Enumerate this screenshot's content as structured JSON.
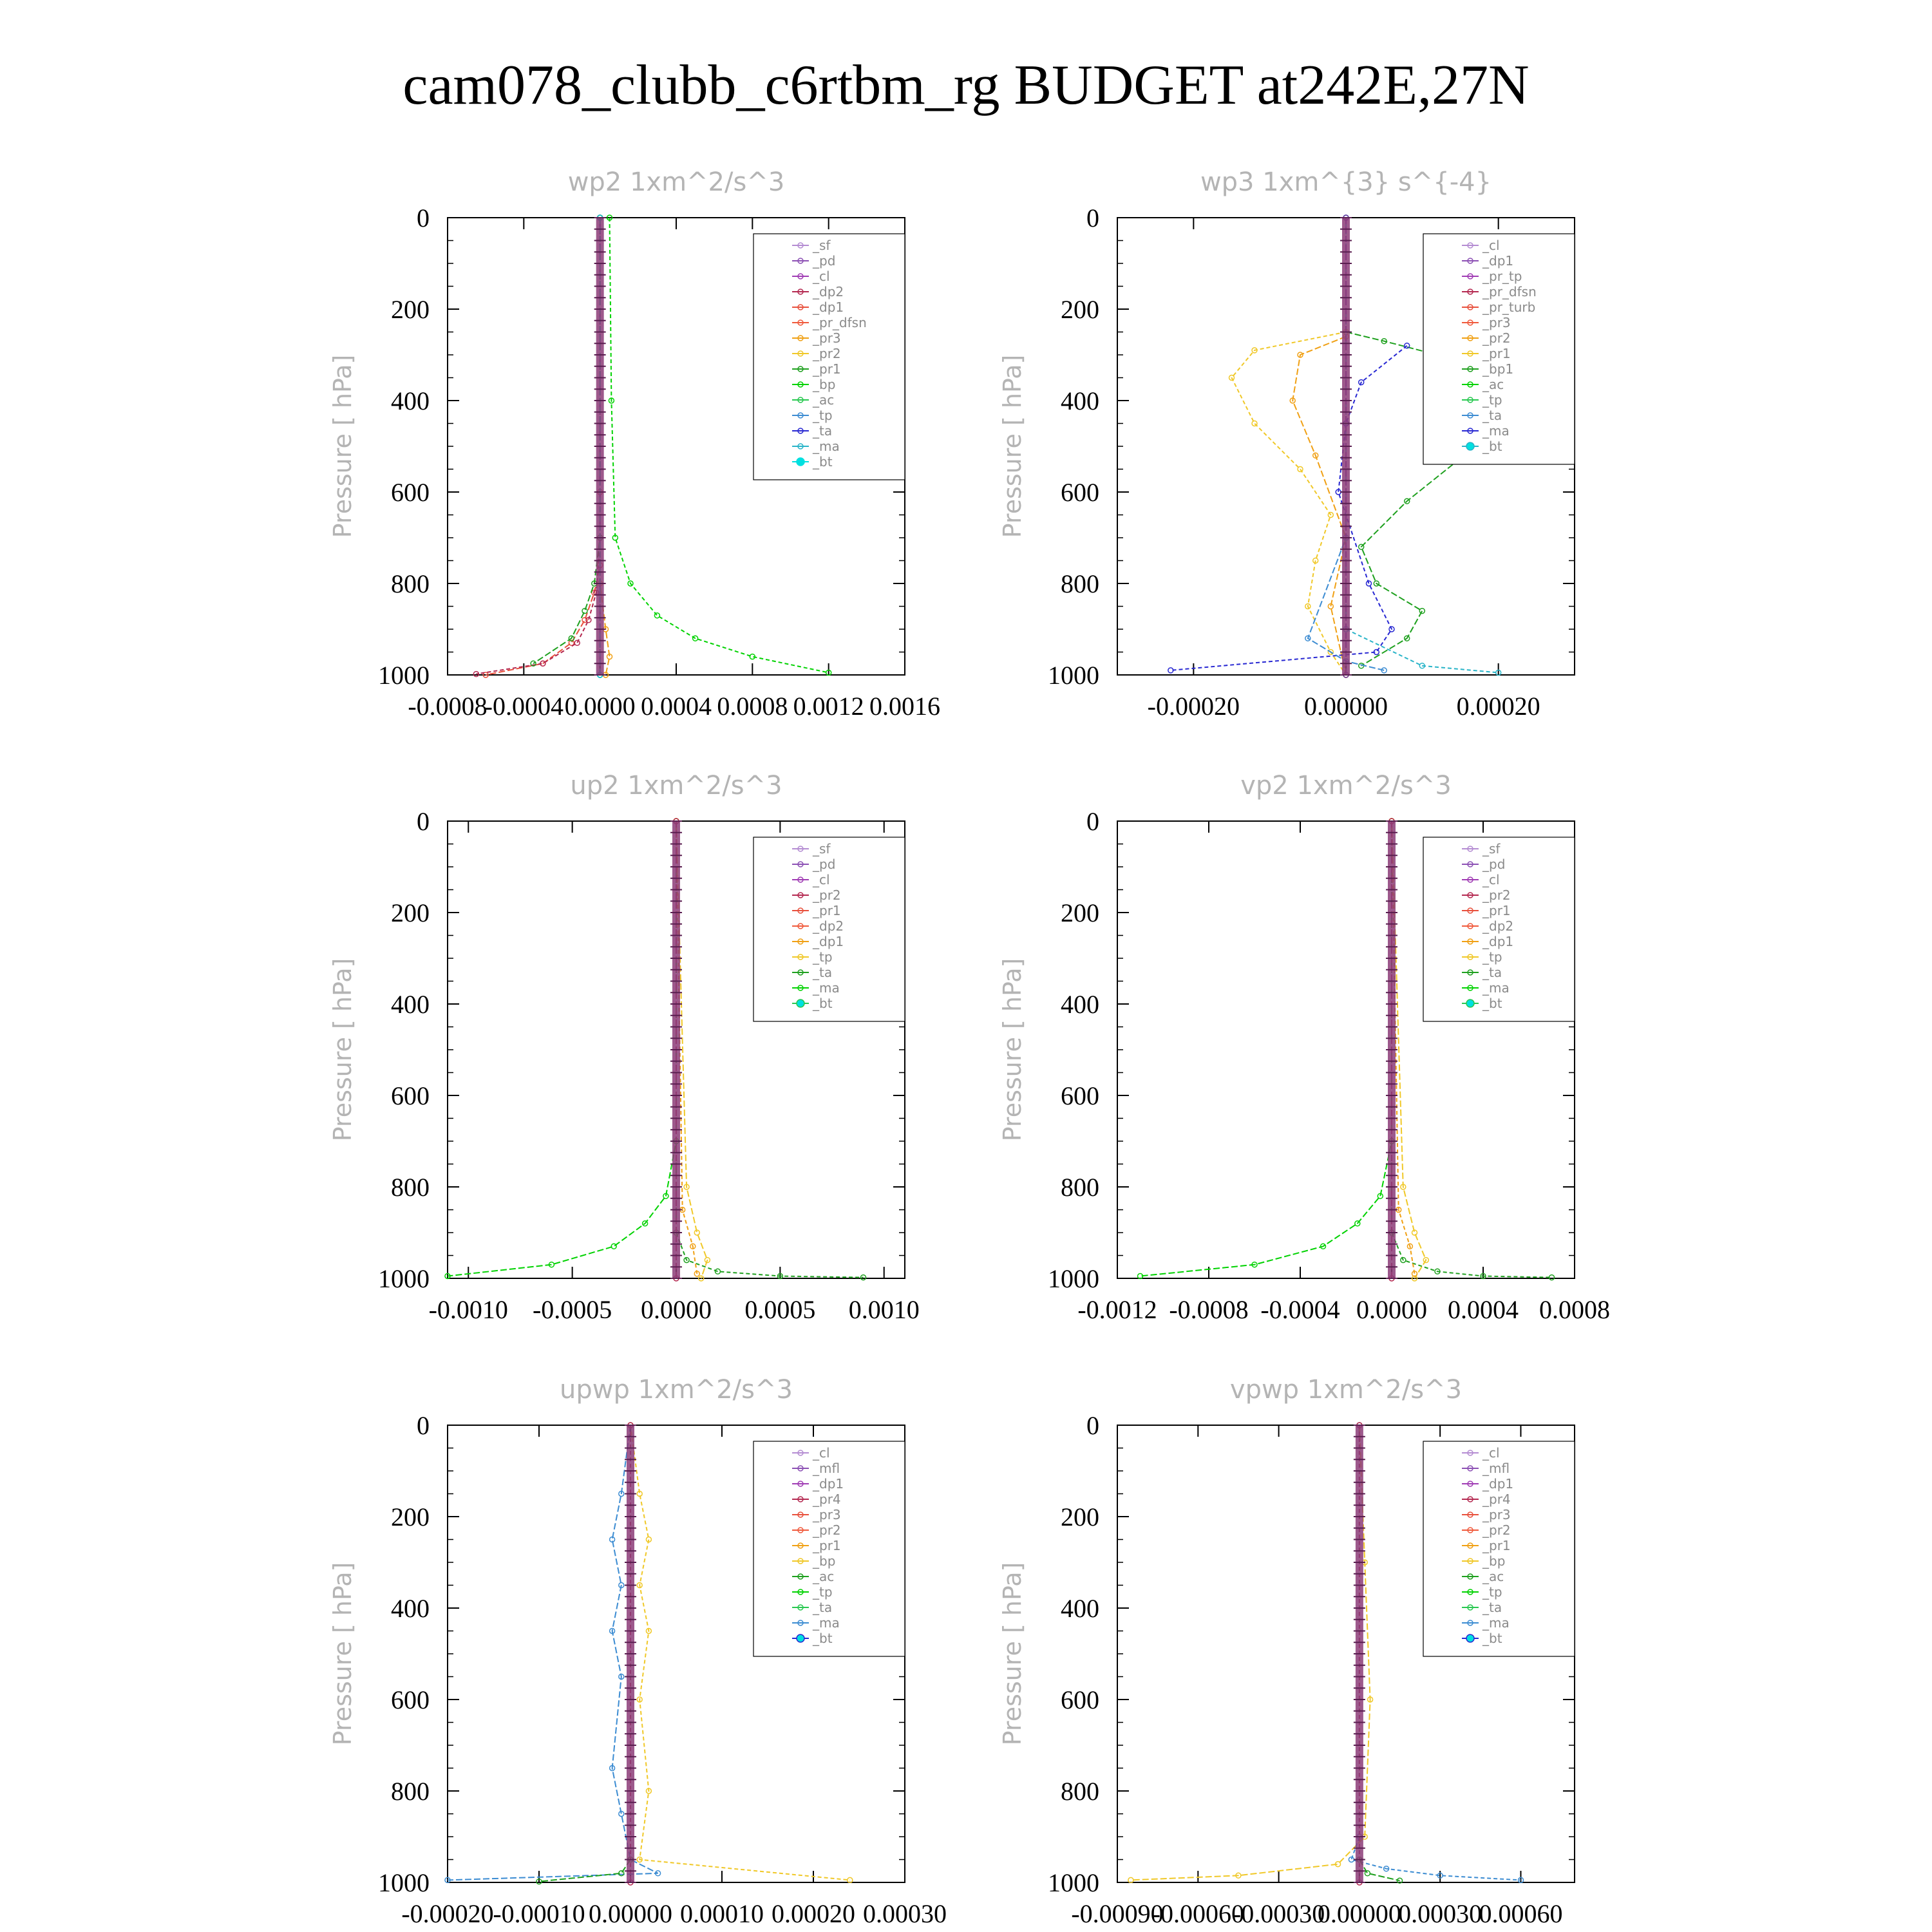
{
  "title": "cam078_clubb_c6rtbm_rg  BUDGET at242E,27N",
  "chart_data": [
    {
      "id": "wp2",
      "type": "line",
      "title": "wp2   1xm^2/s^3",
      "ylabel": "Pressure  [ hPa]",
      "ylim": [
        1000,
        0
      ],
      "xlim": [
        -0.0008,
        0.0016
      ],
      "yticks": [
        "0",
        "200",
        "400",
        "600",
        "800",
        "1000"
      ],
      "xticks": [
        "-0.0008",
        "-0.0004",
        "0.0000",
        "0.0004",
        "0.0008",
        "0.0012",
        "0.0016"
      ],
      "legend": [
        "_sf",
        "_pd",
        "_cl",
        "_dp2",
        "_dp1",
        "_pr_dfsn",
        "_pr3",
        "_pr2",
        "_pr1",
        "_bp",
        "_ac",
        "_tp",
        "_ta",
        "_ma",
        "_bt"
      ],
      "series": [
        {
          "name": "_dp1",
          "color": "#e8503c",
          "x": [
            0,
            0,
            0,
            -3e-05,
            -8e-05,
            -0.00015,
            -0.0003,
            -0.0006
          ],
          "y": [
            0,
            600,
            760,
            820,
            880,
            930,
            975,
            1000
          ]
        },
        {
          "name": "_dp2",
          "color": "#b42850",
          "x": [
            0,
            0,
            -2e-05,
            -6e-05,
            -0.00012,
            -0.0003,
            -0.00065
          ],
          "y": [
            0,
            700,
            820,
            880,
            930,
            975,
            998
          ]
        },
        {
          "name": "_pr1",
          "color": "#1ea01e",
          "x": [
            0,
            0,
            -3e-05,
            -8e-05,
            -0.00015,
            -0.00035
          ],
          "y": [
            0,
            700,
            800,
            860,
            920,
            975
          ]
        },
        {
          "name": "_bp",
          "color": "#00d200",
          "x": [
            5e-05,
            6e-05,
            8e-05,
            0.00016,
            0.0003,
            0.0005,
            0.0008,
            0.0012
          ],
          "y": [
            0,
            400,
            700,
            800,
            870,
            920,
            960,
            995
          ]
        },
        {
          "name": "_pr3",
          "color": "#f0a014",
          "x": [
            0,
            0,
            3e-05,
            5e-05,
            3e-05
          ],
          "y": [
            0,
            800,
            900,
            960,
            1000
          ]
        },
        {
          "name": "_pd",
          "color": "#6a329f",
          "x": [
            0,
            0
          ],
          "y": [
            0,
            1000
          ]
        },
        {
          "name": "_bt",
          "color": "#00c8c8",
          "x": [
            0,
            0
          ],
          "y": [
            0,
            1000
          ]
        }
      ]
    },
    {
      "id": "wp3",
      "type": "line",
      "title": "wp3   1xm^{3} s^{-4}",
      "ylabel": "Pressure  [ hPa]",
      "ylim": [
        1000,
        0
      ],
      "xlim": [
        -0.0003,
        0.0003
      ],
      "yticks": [
        "0",
        "200",
        "400",
        "600",
        "800",
        "1000"
      ],
      "xticks": [
        "-0.00020",
        "0.00000",
        "0.00020"
      ],
      "legend": [
        "_cl",
        "_dp1",
        "_pr_tp",
        "_pr_dfsn",
        "_pr_turb",
        "_pr3",
        "_pr2",
        "_pr1",
        "_bp1",
        "_ac",
        "_tp",
        "_ta",
        "_ma",
        "_bt"
      ],
      "series": [
        {
          "name": "_ac",
          "color": "#1ea01e",
          "x": [
            0,
            5e-05,
            0.00012,
            0.00018,
            0.00017,
            8e-05,
            2e-05,
            4e-05,
            0.0001,
            8e-05,
            2e-05
          ],
          "y": [
            250,
            270,
            300,
            400,
            500,
            620,
            720,
            800,
            860,
            920,
            980
          ]
        },
        {
          "name": "_pr1",
          "color": "#f0c828",
          "x": [
            0,
            -0.00012,
            -0.00015,
            -0.00012,
            -6e-05,
            -2e-05,
            -4e-05,
            -5e-05,
            -2e-05,
            0
          ],
          "y": [
            250,
            290,
            350,
            450,
            550,
            650,
            750,
            850,
            950,
            1000
          ]
        },
        {
          "name": "_pr2",
          "color": "#f0a014",
          "x": [
            0,
            -6e-05,
            -7e-05,
            -4e-05,
            0,
            -2e-05,
            0
          ],
          "y": [
            260,
            300,
            400,
            520,
            700,
            850,
            1000
          ]
        },
        {
          "name": "_ta",
          "color": "#2828d2",
          "x": [
            8e-05,
            2e-05,
            0,
            -1e-05,
            3e-05,
            6e-05,
            4e-05,
            -0.00023
          ],
          "y": [
            280,
            360,
            450,
            600,
            800,
            900,
            950,
            990
          ]
        },
        {
          "name": "_tp",
          "color": "#3c8cd2",
          "x": [
            0,
            0,
            -5e-05,
            0,
            5e-05
          ],
          "y": [
            0,
            700,
            920,
            970,
            990
          ]
        },
        {
          "name": "_ma",
          "color": "#28b4c8",
          "x": [
            0,
            0,
            0.0001,
            0.0002
          ],
          "y": [
            0,
            900,
            980,
            995
          ]
        },
        {
          "name": "_cl",
          "color": "#6a329f",
          "x": [
            0,
            0
          ],
          "y": [
            0,
            1000
          ]
        }
      ]
    },
    {
      "id": "up2",
      "type": "line",
      "title": "up2   1xm^2/s^3",
      "ylabel": "Pressure  [ hPa]",
      "ylim": [
        1000,
        0
      ],
      "xlim": [
        -0.0011,
        0.0011
      ],
      "yticks": [
        "0",
        "200",
        "400",
        "600",
        "800",
        "1000"
      ],
      "xticks": [
        "-0.0010",
        "-0.0005",
        "0.0000",
        "0.0005",
        "0.0010"
      ],
      "legend": [
        "_sf",
        "_pd",
        "_cl",
        "_pr2",
        "_pr1",
        "_dp2",
        "_dp1",
        "_tp",
        "_ta",
        "_ma",
        "_bt"
      ],
      "series": [
        {
          "name": "_dp1",
          "color": "#00d200",
          "x": [
            0,
            0,
            -5e-05,
            -0.00015,
            -0.0003,
            -0.0006,
            -0.0011
          ],
          "y": [
            0,
            700,
            820,
            880,
            930,
            970,
            995
          ]
        },
        {
          "name": "_dp2",
          "color": "#1ea01e",
          "x": [
            0,
            0,
            5e-05,
            0.0002,
            0.0005,
            0.0009
          ],
          "y": [
            0,
            900,
            960,
            985,
            995,
            998
          ]
        },
        {
          "name": "_pr1",
          "color": "#f0c828",
          "x": [
            0,
            5e-05,
            0.0001,
            0.00015,
            0.00012
          ],
          "y": [
            0,
            800,
            900,
            960,
            1000
          ]
        },
        {
          "name": "_pr2",
          "color": "#f0a014",
          "x": [
            0,
            3e-05,
            8e-05,
            0.0001
          ],
          "y": [
            0,
            850,
            930,
            990
          ]
        },
        {
          "name": "_sf",
          "color": "#b42850",
          "x": [
            0,
            0
          ],
          "y": [
            0,
            1000
          ]
        }
      ]
    },
    {
      "id": "vp2",
      "type": "line",
      "title": "vp2   1xm^2/s^3",
      "ylabel": "Pressure  [ hPa]",
      "ylim": [
        1000,
        0
      ],
      "xlim": [
        -0.0012,
        0.0008
      ],
      "yticks": [
        "0",
        "200",
        "400",
        "600",
        "800",
        "1000"
      ],
      "xticks": [
        "-0.0012",
        "-0.0008",
        "-0.0004",
        "0.0000",
        "0.0004",
        "0.0008"
      ],
      "legend": [
        "_sf",
        "_pd",
        "_cl",
        "_pr2",
        "_pr1",
        "_dp2",
        "_dp1",
        "_tp",
        "_ta",
        "_ma",
        "_bt"
      ],
      "series": [
        {
          "name": "_dp1",
          "color": "#00d200",
          "x": [
            0,
            0,
            -5e-05,
            -0.00015,
            -0.0003,
            -0.0006,
            -0.0011
          ],
          "y": [
            0,
            700,
            820,
            880,
            930,
            970,
            995
          ]
        },
        {
          "name": "_dp2",
          "color": "#1ea01e",
          "x": [
            0,
            0,
            5e-05,
            0.0002,
            0.0004,
            0.0007
          ],
          "y": [
            0,
            900,
            960,
            985,
            995,
            998
          ]
        },
        {
          "name": "_pr1",
          "color": "#f0c828",
          "x": [
            0,
            5e-05,
            0.0001,
            0.00015,
            0.0001
          ],
          "y": [
            0,
            800,
            900,
            960,
            1000
          ]
        },
        {
          "name": "_pr2",
          "color": "#f0a014",
          "x": [
            0,
            3e-05,
            8e-05,
            0.0001
          ],
          "y": [
            0,
            850,
            930,
            990
          ]
        },
        {
          "name": "_sf",
          "color": "#b42850",
          "x": [
            0,
            0
          ],
          "y": [
            0,
            1000
          ]
        }
      ]
    },
    {
      "id": "upwp",
      "type": "line",
      "title": "upwp   1xm^2/s^3",
      "ylabel": "Pressure  [ hPa]",
      "ylim": [
        1000,
        0
      ],
      "xlim": [
        -0.0002,
        0.0003
      ],
      "yticks": [
        "0",
        "200",
        "400",
        "600",
        "800",
        "1000"
      ],
      "xticks": [
        "-0.00020",
        "-0.00010",
        "0.00000",
        "0.00010",
        "0.00020",
        "0.00030"
      ],
      "legend": [
        "_cl",
        "_mfl",
        "_dp1",
        "_pr4",
        "_pr3",
        "_pr2",
        "_pr1",
        "_bp",
        "_ac",
        "_tp",
        "_ta",
        "_ma",
        "_bt"
      ],
      "series": [
        {
          "name": "_tp",
          "color": "#3c8cd2",
          "x": [
            0,
            -1e-05,
            -2e-05,
            -1e-05,
            -2e-05,
            -1e-05,
            -2e-05,
            -1e-05,
            0,
            3e-05,
            -0.0002
          ],
          "y": [
            0,
            150,
            250,
            350,
            450,
            550,
            750,
            850,
            950,
            980,
            995
          ]
        },
        {
          "name": "_pr1",
          "color": "#f0c828",
          "x": [
            0,
            1e-05,
            2e-05,
            1e-05,
            2e-05,
            1e-05,
            2e-05,
            1e-05,
            0.00024
          ],
          "y": [
            0,
            150,
            250,
            350,
            450,
            600,
            800,
            950,
            995
          ]
        },
        {
          "name": "_bp",
          "color": "#1ea01e",
          "x": [
            0,
            -1e-05,
            -0.0001
          ],
          "y": [
            950,
            980,
            998
          ]
        },
        {
          "name": "_dp1",
          "color": "#b42850",
          "x": [
            0,
            0
          ],
          "y": [
            0,
            1000
          ]
        }
      ]
    },
    {
      "id": "vpwp",
      "type": "line",
      "title": "vpwp   1xm^2/s^3",
      "ylabel": "Pressure  [ hPa]",
      "ylim": [
        1000,
        0
      ],
      "xlim": [
        -0.0009,
        0.0008
      ],
      "yticks": [
        "0",
        "200",
        "400",
        "600",
        "800",
        "1000"
      ],
      "xticks": [
        "-0.00090",
        "-0.00060",
        "-0.00030",
        "0.00000",
        "0.00030",
        "0.00060"
      ],
      "legend": [
        "_cl",
        "_mfl",
        "_dp1",
        "_pr4",
        "_pr3",
        "_pr2",
        "_pr1",
        "_bp",
        "_ac",
        "_tp",
        "_ta",
        "_ma",
        "_bt"
      ],
      "series": [
        {
          "name": "_pr1",
          "color": "#f0c828",
          "x": [
            0,
            2e-05,
            4e-05,
            2e-05,
            -8e-05,
            -0.00045,
            -0.00085
          ],
          "y": [
            0,
            300,
            600,
            900,
            960,
            985,
            995
          ]
        },
        {
          "name": "_tp",
          "color": "#3c8cd2",
          "x": [
            0,
            0,
            -3e-05,
            0.0001,
            0.0003,
            0.0006
          ],
          "y": [
            0,
            900,
            950,
            970,
            985,
            995
          ]
        },
        {
          "name": "_bp",
          "color": "#1ea01e",
          "x": [
            0,
            3e-05,
            0.00015
          ],
          "y": [
            950,
            980,
            996
          ]
        },
        {
          "name": "_dp1",
          "color": "#b42850",
          "x": [
            0,
            0
          ],
          "y": [
            0,
            1000
          ]
        }
      ]
    }
  ]
}
